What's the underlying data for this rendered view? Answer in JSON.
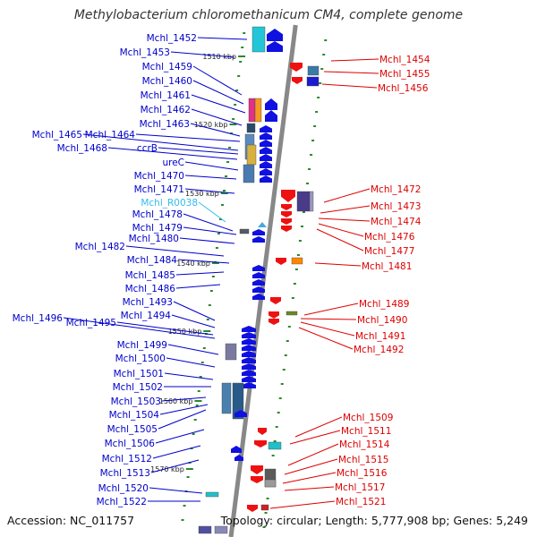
{
  "title": "Methylobacterium chloromethanicum CM4, complete genome",
  "footer": {
    "accession": "Accession: NC_011757",
    "summary": "Topology: circular; Length: 5,777,908 bp; Genes: 5,249"
  },
  "colors": {
    "left_labels": "#0000cc",
    "right_labels": "#dd0000",
    "rna_label": "#33bbee",
    "backbone": "#888888",
    "ticks": "#2a8a2a"
  },
  "scale_marks": [
    "1510 kbp",
    "1520 kbp",
    "1530 kbp",
    "1540 kbp",
    "1550 kbp",
    "1560 kbp",
    "1570 kbp"
  ],
  "left_genes": [
    "Mchl_1452",
    "Mchl_1453",
    "Mchl_1459",
    "Mchl_1460",
    "Mchl_1461",
    "Mchl_1462",
    "Mchl_1463",
    "Mchl_1465",
    "Mchl_1464",
    "Mchl_1468",
    "ccrB",
    "ureC",
    "Mchl_1470",
    "Mchl_1471",
    "Mchl_R0038",
    "Mchl_1478",
    "Mchl_1479",
    "Mchl_1480",
    "Mchl_1482",
    "Mchl_1484",
    "Mchl_1485",
    "Mchl_1486",
    "Mchl_1493",
    "Mchl_1494",
    "Mchl_1496",
    "Mchl_1495",
    "Mchl_1499",
    "Mchl_1500",
    "Mchl_1501",
    "Mchl_1502",
    "Mchl_1503",
    "Mchl_1504",
    "Mchl_1505",
    "Mchl_1506",
    "Mchl_1512",
    "Mchl_1513",
    "Mchl_1520",
    "Mchl_1522"
  ],
  "right_genes": [
    "Mchl_1454",
    "Mchl_1455",
    "Mchl_1456",
    "Mchl_1472",
    "Mchl_1473",
    "Mchl_1474",
    "Mchl_1476",
    "Mchl_1477",
    "Mchl_1481",
    "Mchl_1489",
    "Mchl_1490",
    "Mchl_1491",
    "Mchl_1492",
    "Mchl_1509",
    "Mchl_1511",
    "Mchl_1514",
    "Mchl_1515",
    "Mchl_1516",
    "Mchl_1517",
    "Mchl_1521"
  ]
}
